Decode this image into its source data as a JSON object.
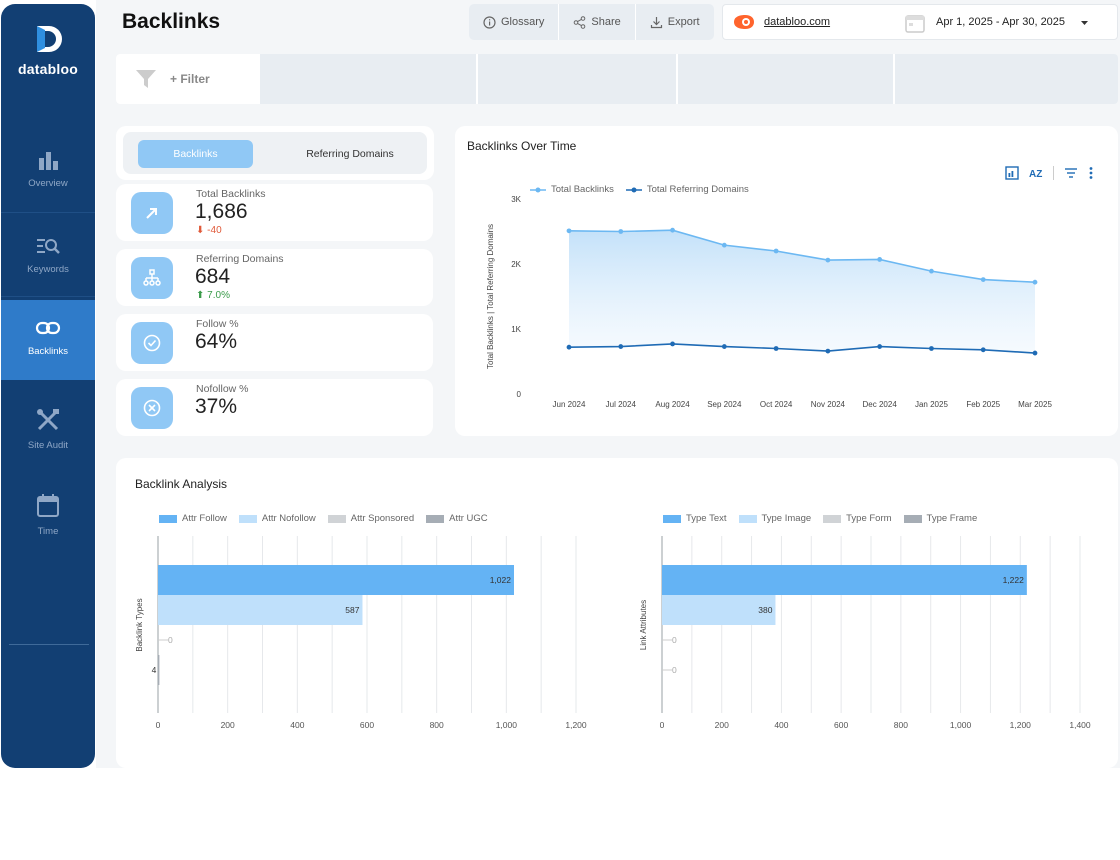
{
  "app": {
    "brand": "databloo",
    "page_title": "Backlinks"
  },
  "sidebar": {
    "items": [
      {
        "label": "Overview",
        "icon": "bar-chart-icon"
      },
      {
        "label": "Keywords",
        "icon": "keyword-search-icon"
      },
      {
        "label": "Backlinks",
        "icon": "link-icon",
        "active": true
      },
      {
        "label": "Site Audit",
        "icon": "tools-icon"
      },
      {
        "label": "Time",
        "icon": "calendar-icon"
      }
    ]
  },
  "toolbar": {
    "glossary": "Glossary",
    "share": "Share",
    "export": "Export"
  },
  "header": {
    "domain": "databloo.com",
    "date_range": "Apr 1, 2025 - Apr 30, 2025"
  },
  "filter": {
    "label": "+ Filter"
  },
  "tabs": {
    "backlinks": "Backlinks",
    "referring_domains": "Referring Domains"
  },
  "kpis": [
    {
      "label": "Total Backlinks",
      "value": "1,686",
      "delta": "-40",
      "trend": "down"
    },
    {
      "label": "Referring Domains",
      "value": "684",
      "delta": "7.0%",
      "trend": "up"
    },
    {
      "label": "Follow %",
      "value": "64%"
    },
    {
      "label": "Nofollow %",
      "value": "37%"
    }
  ],
  "colors": {
    "sidebar": "#123f73",
    "active_nav": "#2f7bc9",
    "accent": "#90c8f5",
    "series_light": "#6cb8f2",
    "series_dark": "#1f6bb5",
    "negative": "#e05a3a",
    "positive": "#3a9b4a"
  },
  "chart_data": [
    {
      "type": "line",
      "title": "Backlinks Over Time",
      "ylabel": "Total Backlinks | Total Referring Domains",
      "x": [
        "Jun 2024",
        "Jul 2024",
        "Aug 2024",
        "Sep 2024",
        "Oct 2024",
        "Nov 2024",
        "Dec 2024",
        "Jan 2025",
        "Feb 2025",
        "Mar 2025"
      ],
      "ylim": [
        0,
        3000
      ],
      "yticks": [
        "0",
        "1K",
        "2K",
        "3K"
      ],
      "legend_position": "top-left",
      "series": [
        {
          "name": "Total Backlinks",
          "values": [
            2510,
            2500,
            2520,
            2290,
            2200,
            2060,
            2070,
            1890,
            1760,
            1720
          ],
          "color": "#6cb8f2"
        },
        {
          "name": "Total Referring Domains",
          "values": [
            720,
            730,
            770,
            730,
            700,
            660,
            730,
            700,
            680,
            630
          ],
          "color": "#1f6bb5"
        }
      ]
    },
    {
      "type": "bar",
      "title": "Backlink Analysis",
      "ylabel": "Backlink Types",
      "orientation": "horizontal",
      "xlim": [
        0,
        1200
      ],
      "xticks": [
        "0",
        "200",
        "400",
        "600",
        "800",
        "1,000",
        "1,200"
      ],
      "series": [
        {
          "name": "Attr Follow",
          "value": 1022,
          "label": "1,022",
          "color": "#64b3f4"
        },
        {
          "name": "Attr Nofollow",
          "value": 587,
          "label": "587",
          "color": "#bfe0fb"
        },
        {
          "name": "Attr Sponsored",
          "value": 0,
          "label": "0",
          "color": "#d0d3d6"
        },
        {
          "name": "Attr UGC",
          "value": 4,
          "label": "4",
          "color": "#a6adb5"
        }
      ]
    },
    {
      "type": "bar",
      "ylabel": "Link Attributes",
      "orientation": "horizontal",
      "xlim": [
        0,
        1400
      ],
      "xticks": [
        "0",
        "200",
        "400",
        "600",
        "800",
        "1,000",
        "1,200",
        "1,400"
      ],
      "series": [
        {
          "name": "Type Text",
          "value": 1222,
          "label": "1,222",
          "color": "#64b3f4"
        },
        {
          "name": "Type Image",
          "value": 380,
          "label": "380",
          "color": "#bfe0fb"
        },
        {
          "name": "Type Form",
          "value": 0,
          "label": "0",
          "color": "#d0d3d6"
        },
        {
          "name": "Type Frame",
          "value": 0,
          "label": "0",
          "color": "#a6adb5"
        }
      ]
    }
  ]
}
